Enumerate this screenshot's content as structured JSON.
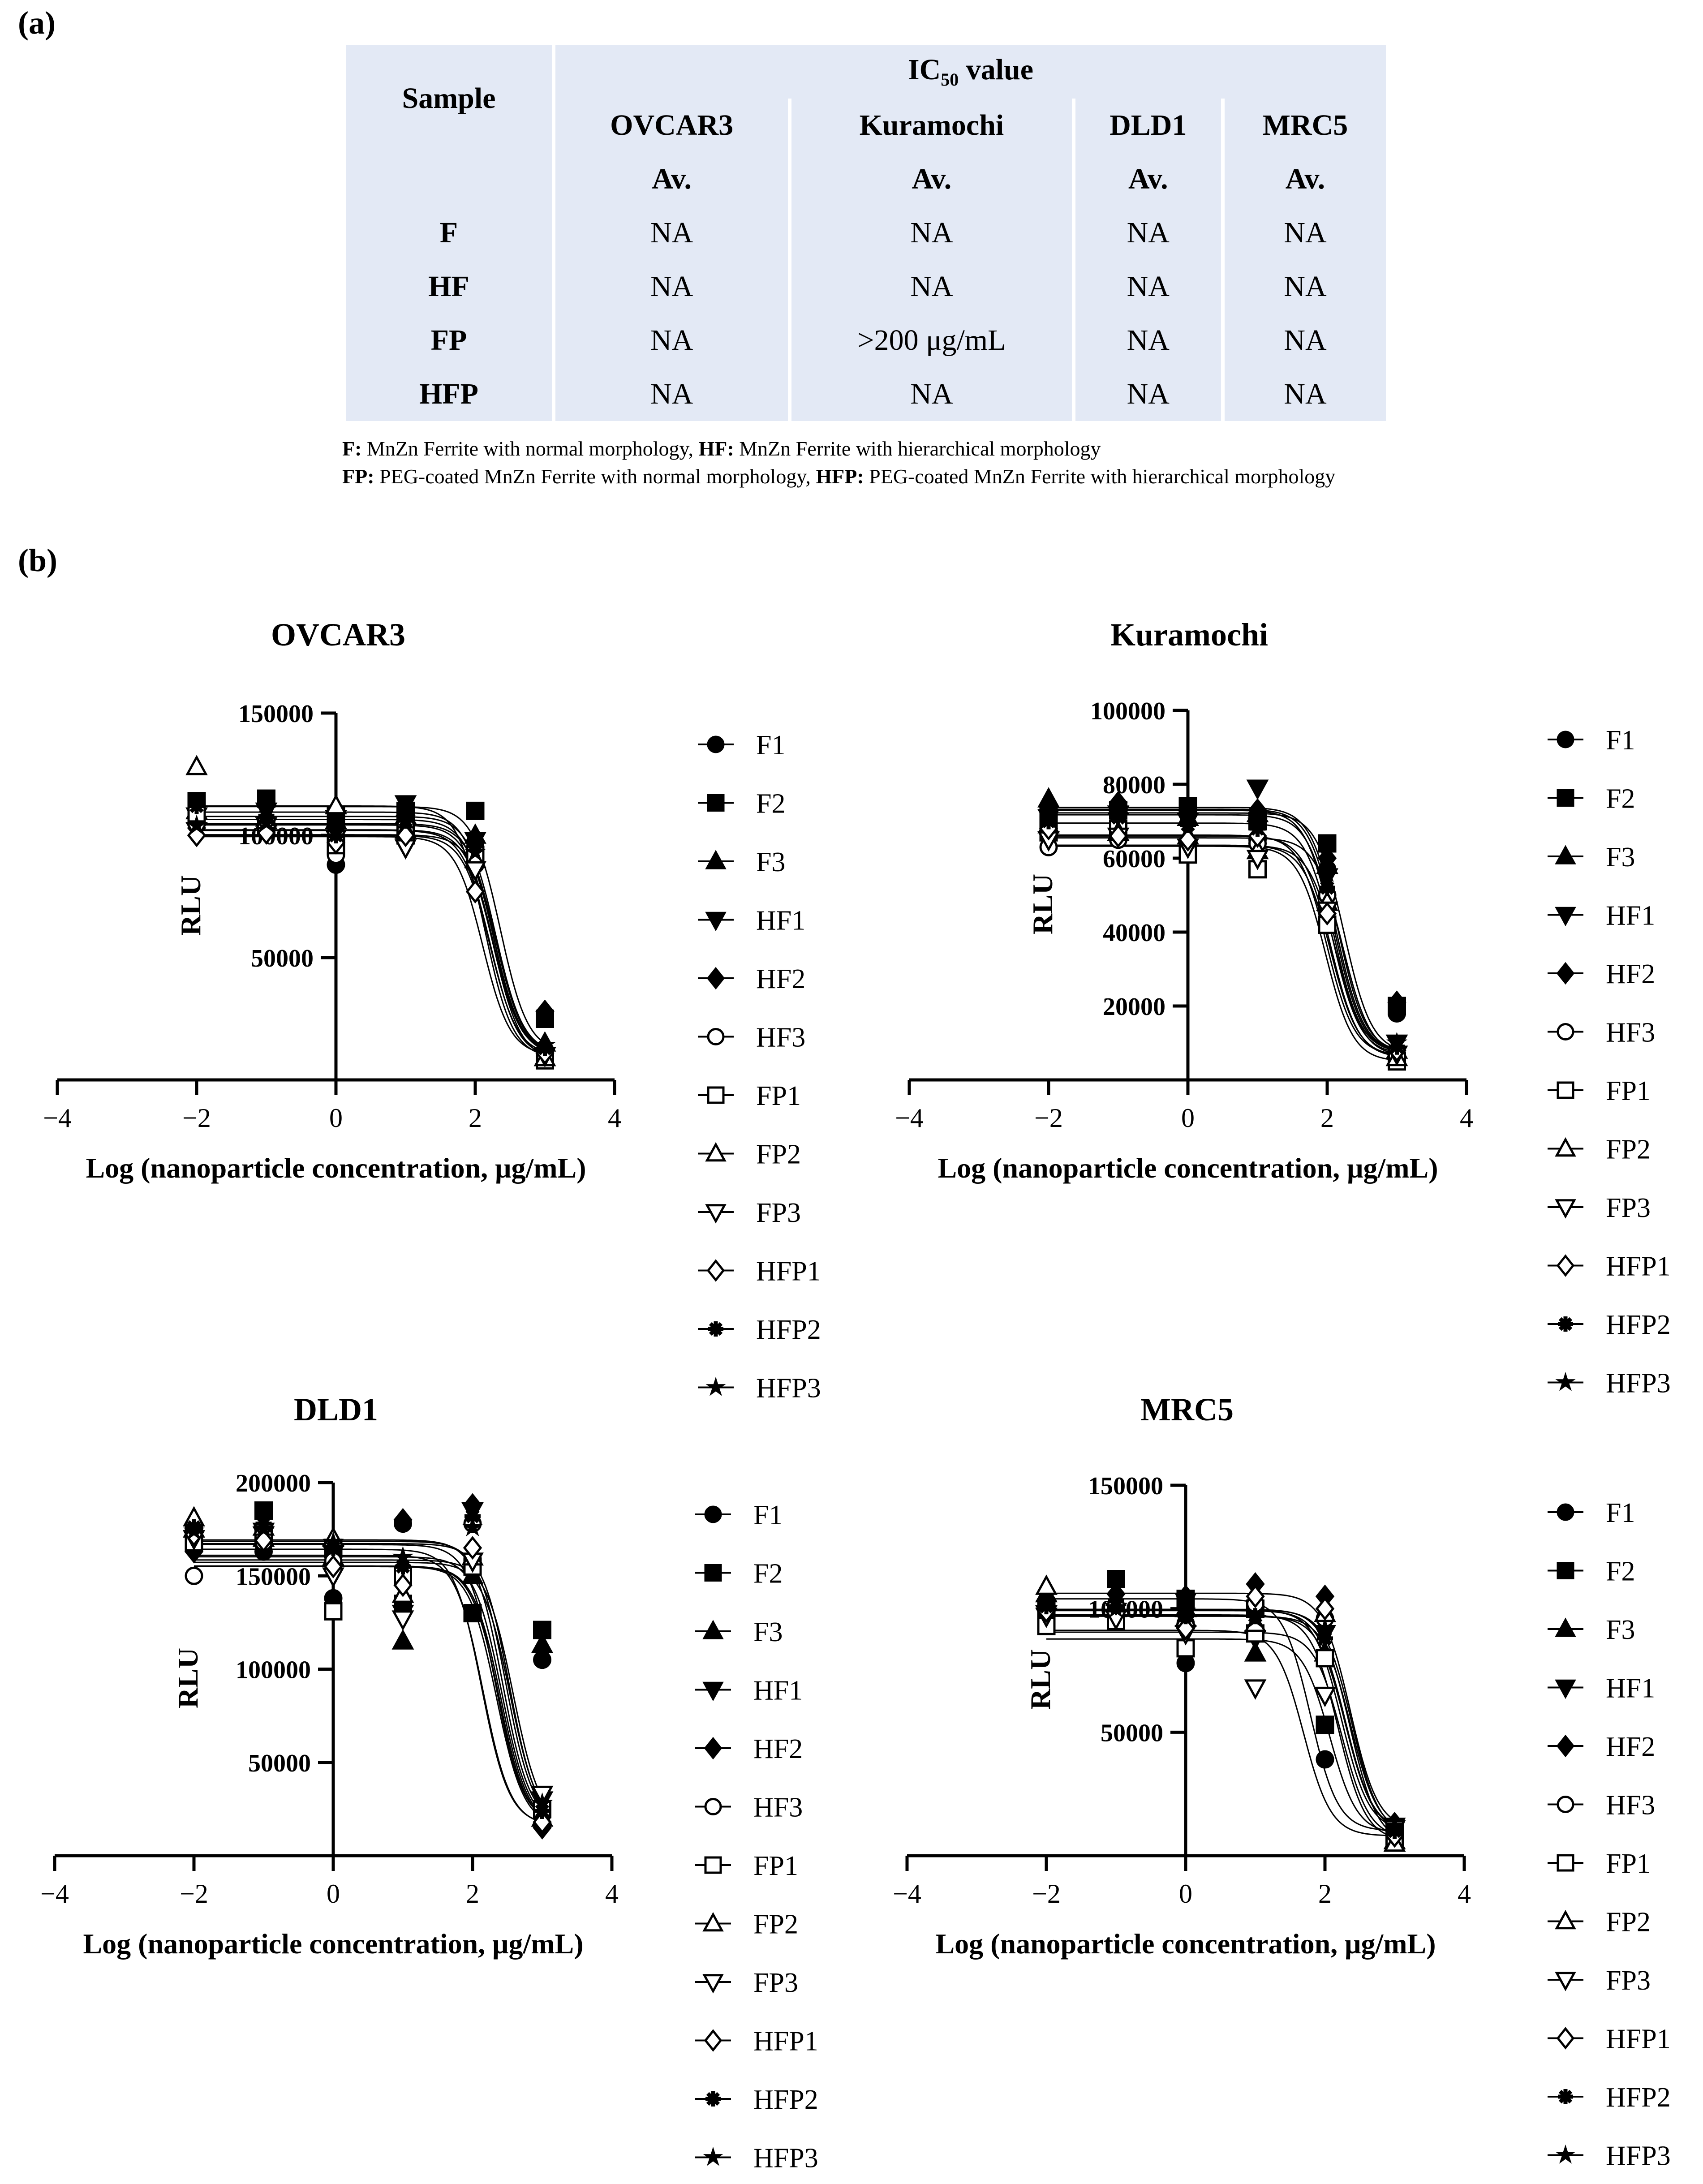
{
  "panel_a_label": "(a)",
  "panel_b_label": "(b)",
  "table": {
    "sample_header": "Sample",
    "ic50_main": "IC",
    "ic50_sub": "50",
    "ic50_rest": " value",
    "cell_lines": [
      "OVCAR3",
      "Kuramochi",
      "DLD1",
      "MRC5"
    ],
    "avg_label": "Av.",
    "rows": [
      {
        "sample": "F",
        "values": [
          "NA",
          "NA",
          "NA",
          "NA"
        ]
      },
      {
        "sample": "HF",
        "values": [
          "NA",
          "NA",
          "NA",
          "NA"
        ]
      },
      {
        "sample": "FP",
        "values": [
          "NA",
          ">200 μg/mL",
          "NA",
          "NA"
        ]
      },
      {
        "sample": "HFP",
        "values": [
          "NA",
          "NA",
          "NA",
          "NA"
        ]
      }
    ]
  },
  "footnote": {
    "line1_parts": [
      [
        "F:",
        " MnZn Ferrite with normal morphology, "
      ],
      [
        "HF:",
        " MnZn Ferrite with hierarchical morphology"
      ]
    ],
    "line2_parts": [
      [
        "FP:",
        " PEG-coated MnZn Ferrite with normal morphology, "
      ],
      [
        "HFP:",
        " PEG-coated MnZn Ferrite with hierarchical morphology"
      ]
    ]
  },
  "colors": {
    "marks": "#000000",
    "table_bg": "#e3e9f5"
  },
  "chart_data": [
    {
      "type": "scatter",
      "title": "OVCAR3",
      "xlabel": "Log (nanoparticle concentration, μg/mL)",
      "ylabel": "RLU",
      "xlim": [
        -4,
        4
      ],
      "ylim": [
        0,
        150000
      ],
      "xticks": [
        -4,
        -2,
        0,
        2,
        4
      ],
      "yticks": [
        50000,
        100000,
        150000
      ],
      "x": [
        -2,
        -1,
        0,
        1,
        2,
        3
      ],
      "series": [
        {
          "name": "F1",
          "marker": "circle-filled",
          "values": [
            105000,
            106000,
            88000,
            102000,
            95000,
            12000
          ]
        },
        {
          "name": "F2",
          "marker": "square-filled",
          "values": [
            114000,
            115000,
            108000,
            110000,
            110000,
            25000
          ]
        },
        {
          "name": "F3",
          "marker": "triangle-up-filled",
          "values": [
            110000,
            107000,
            106000,
            108000,
            100000,
            15000
          ]
        },
        {
          "name": "HF1",
          "marker": "triangle-down-filled",
          "values": [
            108000,
            110000,
            107000,
            113000,
            98000,
            10000
          ]
        },
        {
          "name": "HF2",
          "marker": "diamond-filled",
          "values": [
            103000,
            104000,
            102000,
            110000,
            97000,
            28000
          ]
        },
        {
          "name": "HF3",
          "marker": "circle-open",
          "values": [
            107000,
            105000,
            92000,
            104000,
            88000,
            9000
          ]
        },
        {
          "name": "FP1",
          "marker": "square-open",
          "values": [
            109000,
            104000,
            96000,
            100000,
            92000,
            8000
          ]
        },
        {
          "name": "FP2",
          "marker": "triangle-up-open",
          "values": [
            128000,
            106000,
            112000,
            102000,
            90000,
            9000
          ]
        },
        {
          "name": "FP3",
          "marker": "triangle-down-open",
          "values": [
            102000,
            104000,
            99000,
            95000,
            86000,
            10000
          ]
        },
        {
          "name": "HFP1",
          "marker": "diamond-open",
          "values": [
            100000,
            101000,
            97000,
            100000,
            77000,
            11000
          ]
        },
        {
          "name": "HFP2",
          "marker": "asterisk",
          "values": [
            112000,
            108000,
            100000,
            106000,
            96000,
            13000
          ]
        },
        {
          "name": "HFP3",
          "marker": "star",
          "values": [
            104000,
            105000,
            101000,
            107000,
            93000,
            14000
          ]
        }
      ]
    },
    {
      "type": "scatter",
      "title": "Kuramochi",
      "xlabel": "Log (nanoparticle concentration, μg/mL)",
      "ylabel": "RLU",
      "xlim": [
        -4,
        4
      ],
      "ylim": [
        0,
        100000
      ],
      "xticks": [
        -4,
        -2,
        0,
        2,
        4
      ],
      "yticks": [
        20000,
        40000,
        60000,
        80000,
        100000
      ],
      "x": [
        -2,
        -1,
        0,
        1,
        2,
        3
      ],
      "series": [
        {
          "name": "F1",
          "marker": "circle-filled",
          "values": [
            66000,
            67000,
            64000,
            65000,
            57000,
            18000
          ]
        },
        {
          "name": "F2",
          "marker": "square-filled",
          "values": [
            72000,
            73000,
            74000,
            70000,
            64000,
            20000
          ]
        },
        {
          "name": "F3",
          "marker": "triangle-up-filled",
          "values": [
            76000,
            74000,
            71000,
            72000,
            58000,
            8000
          ]
        },
        {
          "name": "HF1",
          "marker": "triangle-down-filled",
          "values": [
            71000,
            72000,
            70000,
            79000,
            55000,
            10000
          ]
        },
        {
          "name": "HF2",
          "marker": "diamond-filled",
          "values": [
            74000,
            75000,
            73000,
            73000,
            60000,
            21000
          ]
        },
        {
          "name": "HF3",
          "marker": "circle-open",
          "values": [
            63000,
            65000,
            62000,
            64000,
            50000,
            7000
          ]
        },
        {
          "name": "FP1",
          "marker": "square-open",
          "values": [
            67000,
            68000,
            61000,
            57000,
            42000,
            5000
          ]
        },
        {
          "name": "FP2",
          "marker": "triangle-up-open",
          "values": [
            69000,
            67000,
            66000,
            62000,
            48000,
            6000
          ]
        },
        {
          "name": "FP3",
          "marker": "triangle-down-open",
          "values": [
            65000,
            66000,
            63000,
            60000,
            46000,
            7000
          ]
        },
        {
          "name": "HFP1",
          "marker": "diamond-open",
          "values": [
            68000,
            66000,
            65000,
            66000,
            45000,
            8000
          ]
        },
        {
          "name": "HFP2",
          "marker": "asterisk",
          "values": [
            70000,
            71000,
            69000,
            68000,
            52000,
            9000
          ]
        },
        {
          "name": "HFP3",
          "marker": "star",
          "values": [
            73000,
            72000,
            72000,
            70000,
            56000,
            10000
          ]
        }
      ]
    },
    {
      "type": "scatter",
      "title": "DLD1",
      "xlabel": "Log (nanoparticle concentration, μg/mL)",
      "ylabel": "RLU",
      "xlim": [
        -4,
        4
      ],
      "ylim": [
        0,
        200000
      ],
      "xticks": [
        -4,
        -2,
        0,
        2,
        4
      ],
      "yticks": [
        50000,
        100000,
        150000,
        200000
      ],
      "x": [
        -2,
        -1,
        0,
        1,
        2,
        3
      ],
      "series": [
        {
          "name": "F1",
          "marker": "circle-filled",
          "values": [
            165000,
            163000,
            138000,
            178000,
            130000,
            105000
          ]
        },
        {
          "name": "F2",
          "marker": "square-filled",
          "values": [
            172000,
            185000,
            165000,
            135000,
            130000,
            121000
          ]
        },
        {
          "name": "F3",
          "marker": "triangle-up-filled",
          "values": [
            175000,
            170000,
            160000,
            115000,
            150000,
            113000
          ]
        },
        {
          "name": "HF1",
          "marker": "triangle-down-filled",
          "values": [
            170000,
            172000,
            162000,
            130000,
            185000,
            30000
          ]
        },
        {
          "name": "HF2",
          "marker": "diamond-filled",
          "values": [
            163000,
            166000,
            160000,
            180000,
            188000,
            15000
          ]
        },
        {
          "name": "HF3",
          "marker": "circle-open",
          "values": [
            150000,
            168000,
            158000,
            153000,
            178000,
            22000
          ]
        },
        {
          "name": "FP1",
          "marker": "square-open",
          "values": [
            168000,
            172000,
            131000,
            150000,
            155000,
            25000
          ]
        },
        {
          "name": "FP2",
          "marker": "triangle-up-open",
          "values": [
            181000,
            176000,
            170000,
            140000,
            160000,
            20000
          ]
        },
        {
          "name": "FP3",
          "marker": "triangle-down-open",
          "values": [
            170000,
            174000,
            150000,
            127000,
            158000,
            33000
          ]
        },
        {
          "name": "HFP1",
          "marker": "diamond-open",
          "values": [
            172000,
            169000,
            155000,
            145000,
            165000,
            18000
          ]
        },
        {
          "name": "HFP2",
          "marker": "asterisk",
          "values": [
            176000,
            178000,
            165000,
            155000,
            182000,
            24000
          ]
        },
        {
          "name": "HFP3",
          "marker": "star",
          "values": [
            174000,
            175000,
            168000,
            160000,
            176000,
            28000
          ]
        }
      ]
    },
    {
      "type": "scatter",
      "title": "MRC5",
      "xlabel": "Log (nanoparticle concentration, μg/mL)",
      "ylabel": "RLU",
      "xlim": [
        -4,
        4
      ],
      "ylim": [
        0,
        150000
      ],
      "xticks": [
        -4,
        -2,
        0,
        2,
        4
      ],
      "yticks": [
        50000,
        100000,
        150000
      ],
      "x": [
        -2,
        -1,
        0,
        1,
        2,
        3
      ],
      "series": [
        {
          "name": "F1",
          "marker": "circle-filled",
          "values": [
            96000,
            101000,
            78000,
            90000,
            39000,
            8000
          ]
        },
        {
          "name": "F2",
          "marker": "square-filled",
          "values": [
            100000,
            112000,
            104000,
            100000,
            53000,
            10000
          ]
        },
        {
          "name": "F3",
          "marker": "triangle-up-filled",
          "values": [
            106000,
            102000,
            100000,
            82000,
            82000,
            6000
          ]
        },
        {
          "name": "HF1",
          "marker": "triangle-down-filled",
          "values": [
            98000,
            99000,
            103000,
            88000,
            90000,
            12000
          ]
        },
        {
          "name": "HF2",
          "marker": "diamond-filled",
          "values": [
            104000,
            106000,
            105000,
            110000,
            105000,
            13000
          ]
        },
        {
          "name": "HF3",
          "marker": "circle-open",
          "values": [
            95000,
            97000,
            94000,
            102000,
            96000,
            9000
          ]
        },
        {
          "name": "FP1",
          "marker": "square-open",
          "values": [
            93000,
            95000,
            84000,
            90000,
            80000,
            7000
          ]
        },
        {
          "name": "FP2",
          "marker": "triangle-up-open",
          "values": [
            109000,
            100000,
            96000,
            94000,
            98000,
            5000
          ]
        },
        {
          "name": "FP3",
          "marker": "triangle-down-open",
          "values": [
            97000,
            96000,
            90000,
            68000,
            65000,
            11000
          ]
        },
        {
          "name": "HFP1",
          "marker": "diamond-open",
          "values": [
            99000,
            102000,
            92000,
            105000,
            100000,
            8000
          ]
        },
        {
          "name": "HFP2",
          "marker": "asterisk",
          "values": [
            101000,
            103000,
            97000,
            97000,
            88000,
            10000
          ]
        },
        {
          "name": "HFP3",
          "marker": "star",
          "values": [
            102000,
            100000,
            99000,
            96000,
            92000,
            12000
          ]
        }
      ]
    }
  ]
}
